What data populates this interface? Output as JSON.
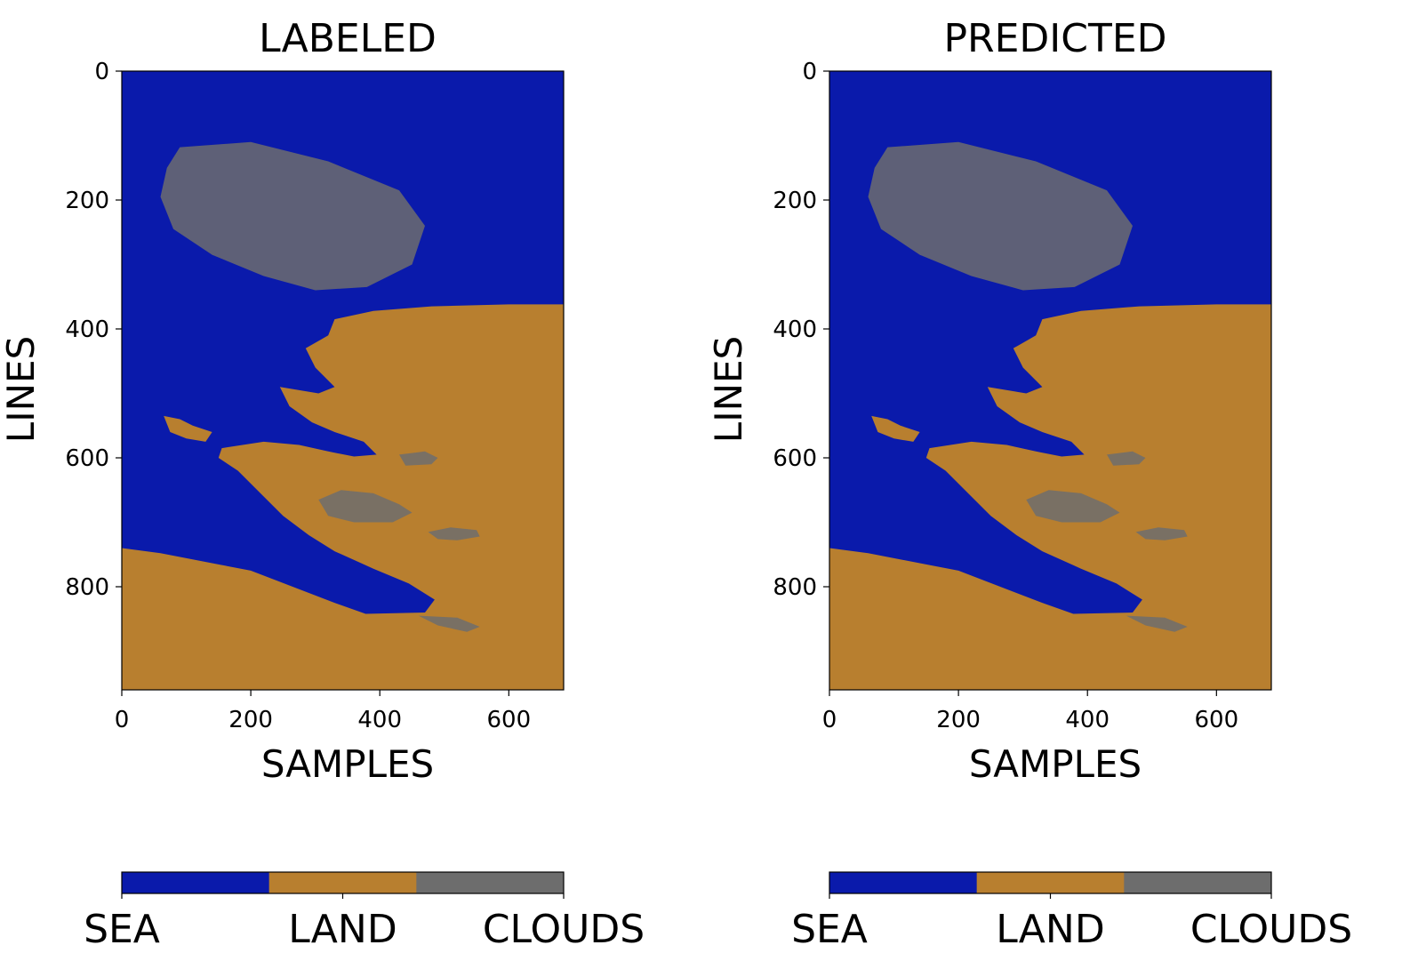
{
  "chart_data": [
    {
      "type": "heatmap",
      "title": "LABELED",
      "xlabel": "SAMPLES",
      "ylabel": "LINES",
      "xlim": [
        0,
        685
      ],
      "ylim": [
        960,
        0
      ],
      "xticks": [
        0,
        200,
        400,
        600
      ],
      "yticks": [
        0,
        200,
        400,
        600,
        800
      ],
      "classes": [
        "SEA",
        "LAND",
        "CLOUDS"
      ],
      "class_colors": [
        "#0a1aab",
        "#b87f2f",
        "#6d6d6d"
      ],
      "land_regions": [
        {
          "points": [
            [
              0,
              740
            ],
            [
              60,
              748
            ],
            [
              200,
              775
            ],
            [
              330,
              825
            ],
            [
              378,
              842
            ],
            [
              470,
              840
            ],
            [
              485,
              820
            ],
            [
              445,
              795
            ],
            [
              390,
              772
            ],
            [
              330,
              745
            ],
            [
              290,
              720
            ],
            [
              250,
              690
            ],
            [
              220,
              660
            ],
            [
              180,
              620
            ],
            [
              150,
              600
            ],
            [
              155,
              585
            ],
            [
              220,
              575
            ],
            [
              275,
              580
            ],
            [
              320,
              590
            ],
            [
              360,
              598
            ],
            [
              395,
              595
            ],
            [
              375,
              575
            ],
            [
              330,
              560
            ],
            [
              295,
              545
            ],
            [
              260,
              520
            ],
            [
              245,
              490
            ],
            [
              305,
              500
            ],
            [
              330,
              490
            ],
            [
              300,
              460
            ],
            [
              285,
              430
            ],
            [
              320,
              410
            ],
            [
              330,
              385
            ],
            [
              390,
              372
            ],
            [
              480,
              365
            ],
            [
              600,
              362
            ],
            [
              685,
              362
            ],
            [
              685,
              960
            ],
            [
              0,
              960
            ]
          ]
        },
        {
          "points": [
            [
              65,
              535
            ],
            [
              90,
              540
            ],
            [
              110,
              550
            ],
            [
              140,
              560
            ],
            [
              130,
              575
            ],
            [
              100,
              570
            ],
            [
              75,
              560
            ]
          ]
        }
      ],
      "cloud_regions": [
        {
          "points": [
            [
              305,
              665
            ],
            [
              340,
              650
            ],
            [
              390,
              655
            ],
            [
              430,
              672
            ],
            [
              450,
              685
            ],
            [
              420,
              700
            ],
            [
              360,
              700
            ],
            [
              320,
              690
            ]
          ]
        },
        {
          "points": [
            [
              430,
              595
            ],
            [
              470,
              590
            ],
            [
              490,
              600
            ],
            [
              480,
              610
            ],
            [
              440,
              612
            ]
          ]
        },
        {
          "points": [
            [
              475,
              715
            ],
            [
              510,
              708
            ],
            [
              550,
              712
            ],
            [
              555,
              722
            ],
            [
              520,
              728
            ],
            [
              490,
              726
            ]
          ]
        },
        {
          "points": [
            [
              460,
              845
            ],
            [
              520,
              848
            ],
            [
              555,
              862
            ],
            [
              535,
              870
            ],
            [
              490,
              860
            ]
          ]
        },
        {
          "points": [
            [
              90,
              118
            ],
            [
              200,
              110
            ],
            [
              320,
              140
            ],
            [
              430,
              185
            ],
            [
              470,
              240
            ],
            [
              450,
              300
            ],
            [
              380,
              335
            ],
            [
              300,
              340
            ],
            [
              220,
              318
            ],
            [
              140,
              285
            ],
            [
              80,
              245
            ],
            [
              60,
              195
            ],
            [
              70,
              150
            ]
          ]
        }
      ]
    },
    {
      "type": "heatmap",
      "title": "PREDICTED",
      "xlabel": "SAMPLES",
      "ylabel": "LINES",
      "xlim": [
        0,
        685
      ],
      "ylim": [
        960,
        0
      ],
      "xticks": [
        0,
        200,
        400,
        600
      ],
      "yticks": [
        0,
        200,
        400,
        600,
        800
      ],
      "classes": [
        "SEA",
        "LAND",
        "CLOUDS"
      ],
      "class_colors": [
        "#0a1aab",
        "#b87f2f",
        "#6d6d6d"
      ],
      "land_regions": [
        {
          "points": [
            [
              0,
              740
            ],
            [
              60,
              748
            ],
            [
              200,
              775
            ],
            [
              330,
              825
            ],
            [
              378,
              842
            ],
            [
              470,
              840
            ],
            [
              485,
              820
            ],
            [
              445,
              795
            ],
            [
              390,
              772
            ],
            [
              330,
              745
            ],
            [
              290,
              720
            ],
            [
              250,
              690
            ],
            [
              220,
              660
            ],
            [
              180,
              620
            ],
            [
              150,
              600
            ],
            [
              155,
              585
            ],
            [
              220,
              575
            ],
            [
              275,
              580
            ],
            [
              320,
              590
            ],
            [
              360,
              598
            ],
            [
              395,
              595
            ],
            [
              375,
              575
            ],
            [
              330,
              560
            ],
            [
              295,
              545
            ],
            [
              260,
              520
            ],
            [
              245,
              490
            ],
            [
              305,
              500
            ],
            [
              330,
              490
            ],
            [
              300,
              460
            ],
            [
              285,
              430
            ],
            [
              320,
              410
            ],
            [
              330,
              385
            ],
            [
              390,
              372
            ],
            [
              480,
              365
            ],
            [
              600,
              362
            ],
            [
              685,
              362
            ],
            [
              685,
              960
            ],
            [
              0,
              960
            ]
          ]
        },
        {
          "points": [
            [
              65,
              535
            ],
            [
              90,
              540
            ],
            [
              110,
              550
            ],
            [
              140,
              560
            ],
            [
              130,
              575
            ],
            [
              100,
              570
            ],
            [
              75,
              560
            ]
          ]
        }
      ],
      "cloud_regions": [
        {
          "points": [
            [
              305,
              665
            ],
            [
              340,
              650
            ],
            [
              390,
              655
            ],
            [
              430,
              672
            ],
            [
              450,
              685
            ],
            [
              420,
              700
            ],
            [
              360,
              700
            ],
            [
              320,
              690
            ]
          ]
        },
        {
          "points": [
            [
              430,
              595
            ],
            [
              470,
              590
            ],
            [
              490,
              600
            ],
            [
              480,
              610
            ],
            [
              440,
              612
            ]
          ]
        },
        {
          "points": [
            [
              475,
              715
            ],
            [
              510,
              708
            ],
            [
              550,
              712
            ],
            [
              555,
              722
            ],
            [
              520,
              728
            ],
            [
              490,
              726
            ]
          ]
        },
        {
          "points": [
            [
              460,
              845
            ],
            [
              520,
              848
            ],
            [
              555,
              862
            ],
            [
              535,
              870
            ],
            [
              490,
              860
            ]
          ]
        },
        {
          "points": [
            [
              90,
              118
            ],
            [
              200,
              110
            ],
            [
              320,
              140
            ],
            [
              430,
              185
            ],
            [
              470,
              240
            ],
            [
              450,
              300
            ],
            [
              380,
              335
            ],
            [
              300,
              340
            ],
            [
              220,
              318
            ],
            [
              140,
              285
            ],
            [
              80,
              245
            ],
            [
              60,
              195
            ],
            [
              70,
              150
            ]
          ]
        }
      ]
    }
  ]
}
